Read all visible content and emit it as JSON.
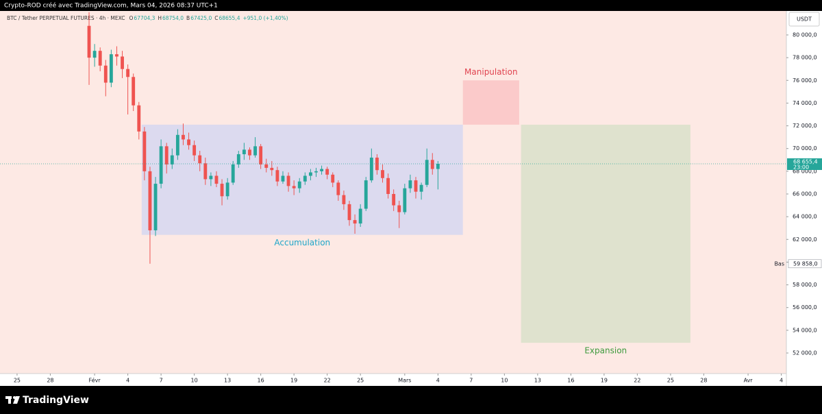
{
  "header": {
    "author_line": "Crypto-ROD créé avec TradingView.com, Mars 04, 2026 08:37 UTC+1",
    "symbol": "BTC / Tether PERPETUAL FUTURES · 4h · MEXC",
    "ohlc": [
      {
        "label": "O",
        "value": "67704,3"
      },
      {
        "label": "H",
        "value": "68754,0"
      },
      {
        "label": "B",
        "value": "67425,0"
      },
      {
        "label": "C",
        "value": "68655,4"
      }
    ],
    "change": "+951,0 (+1,40%)"
  },
  "footer": {
    "brand": "TradingView"
  },
  "chart_data": {
    "type": "candlestick",
    "currency": "USDT",
    "up_color": "#26a69a",
    "down_color": "#ef5350",
    "background": "#fde9e4",
    "ylim": [
      50190,
      82110
    ],
    "yticks": [
      {
        "value": 52000,
        "label": "52 000,0"
      },
      {
        "value": 54000,
        "label": "54 000,0"
      },
      {
        "value": 56000,
        "label": "56 000,0"
      },
      {
        "value": 58000,
        "label": "58 000,0"
      },
      {
        "value": 60000,
        "label": "60 000,0"
      },
      {
        "value": 62000,
        "label": "62 000,0"
      },
      {
        "value": 64000,
        "label": "64 000,0"
      },
      {
        "value": 66000,
        "label": "66 000,0"
      },
      {
        "value": 68000,
        "label": "68 000,0"
      },
      {
        "value": 70000,
        "label": "70 000,0"
      },
      {
        "value": 72000,
        "label": "72 000,0"
      },
      {
        "value": 74000,
        "label": "74 000,0"
      },
      {
        "value": 76000,
        "label": "76 000,0"
      },
      {
        "value": 78000,
        "label": "78 000,0"
      },
      {
        "value": 80000,
        "label": "80 000,0"
      }
    ],
    "xlim": [
      "2026-01-23T11:00",
      "2026-04-04T11:00"
    ],
    "xticks": [
      {
        "value": "2026-01-25T00:00",
        "label": "25"
      },
      {
        "value": "2026-01-28T00:00",
        "label": "28"
      },
      {
        "value": "2026-02-01T00:00",
        "label": "Févr"
      },
      {
        "value": "2026-02-04T00:00",
        "label": "4"
      },
      {
        "value": "2026-02-07T00:00",
        "label": "7"
      },
      {
        "value": "2026-02-10T00:00",
        "label": "10"
      },
      {
        "value": "2026-02-13T00:00",
        "label": "13"
      },
      {
        "value": "2026-02-16T00:00",
        "label": "16"
      },
      {
        "value": "2026-02-19T00:00",
        "label": "19"
      },
      {
        "value": "2026-02-22T00:00",
        "label": "22"
      },
      {
        "value": "2026-02-25T00:00",
        "label": "25"
      },
      {
        "value": "2026-03-01T00:00",
        "label": "Mars"
      },
      {
        "value": "2026-03-04T00:00",
        "label": "4"
      },
      {
        "value": "2026-03-07T00:00",
        "label": "7"
      },
      {
        "value": "2026-03-10T00:00",
        "label": "10"
      },
      {
        "value": "2026-03-13T00:00",
        "label": "13"
      },
      {
        "value": "2026-03-16T00:00",
        "label": "16"
      },
      {
        "value": "2026-03-19T00:00",
        "label": "19"
      },
      {
        "value": "2026-03-22T00:00",
        "label": "22"
      },
      {
        "value": "2026-03-25T00:00",
        "label": "25"
      },
      {
        "value": "2026-03-28T00:00",
        "label": "28"
      },
      {
        "value": "2026-04-01T00:00",
        "label": "Avr"
      },
      {
        "value": "2026-04-04T00:00",
        "label": "4"
      }
    ],
    "x": [
      "2026-01-31T12:00",
      "2026-02-01T00:00",
      "2026-02-01T12:00",
      "2026-02-02T00:00",
      "2026-02-02T12:00",
      "2026-02-03T00:00",
      "2026-02-03T12:00",
      "2026-02-04T00:00",
      "2026-02-04T12:00",
      "2026-02-05T00:00",
      "2026-02-05T12:00",
      "2026-02-06T00:00",
      "2026-02-06T12:00",
      "2026-02-07T00:00",
      "2026-02-07T12:00",
      "2026-02-08T00:00",
      "2026-02-08T12:00",
      "2026-02-09T00:00",
      "2026-02-09T12:00",
      "2026-02-10T00:00",
      "2026-02-10T12:00",
      "2026-02-11T00:00",
      "2026-02-11T12:00",
      "2026-02-12T00:00",
      "2026-02-12T12:00",
      "2026-02-13T00:00",
      "2026-02-13T12:00",
      "2026-02-14T00:00",
      "2026-02-14T12:00",
      "2026-02-15T00:00",
      "2026-02-15T12:00",
      "2026-02-16T00:00",
      "2026-02-16T12:00",
      "2026-02-17T00:00",
      "2026-02-17T12:00",
      "2026-02-18T00:00",
      "2026-02-18T12:00",
      "2026-02-19T00:00",
      "2026-02-19T12:00",
      "2026-02-20T00:00",
      "2026-02-20T12:00",
      "2026-02-21T00:00",
      "2026-02-21T12:00",
      "2026-02-22T00:00",
      "2026-02-22T12:00",
      "2026-02-23T00:00",
      "2026-02-23T12:00",
      "2026-02-24T00:00",
      "2026-02-24T12:00",
      "2026-02-25T00:00",
      "2026-02-25T12:00",
      "2026-02-26T00:00",
      "2026-02-26T12:00",
      "2026-02-27T00:00",
      "2026-02-27T12:00",
      "2026-02-28T00:00",
      "2026-02-28T12:00",
      "2026-03-01T00:00",
      "2026-03-01T12:00",
      "2026-03-02T00:00",
      "2026-03-02T12:00",
      "2026-03-03T00:00",
      "2026-03-03T12:00",
      "2026-03-04T00:00"
    ],
    "open": [
      80800,
      78000,
      78600,
      77300,
      75800,
      78300,
      78100,
      77000,
      76300,
      73800,
      71500,
      68000,
      62800,
      66900,
      70200,
      68600,
      69400,
      71200,
      70800,
      70300,
      69400,
      68700,
      67300,
      67600,
      66900,
      65800,
      67000,
      68600,
      69500,
      69900,
      69400,
      70200,
      68600,
      68300,
      68100,
      67100,
      67600,
      66700,
      66500,
      67100,
      67600,
      67900,
      68000,
      68200,
      67700,
      67000,
      65900,
      65100,
      63700,
      63400,
      64700,
      67200,
      69200,
      68100,
      67400,
      66000,
      65000,
      64400,
      66500,
      67200,
      66200,
      66800,
      69000,
      68200
    ],
    "high": [
      82000,
      79200,
      78900,
      77800,
      78700,
      79000,
      78600,
      77400,
      76600,
      74100,
      71900,
      68400,
      67500,
      70800,
      70500,
      70000,
      71700,
      72200,
      71400,
      70700,
      69800,
      69200,
      67900,
      68000,
      67300,
      67400,
      68900,
      69800,
      70500,
      70100,
      71000,
      70400,
      69100,
      68900,
      68400,
      68000,
      67900,
      67200,
      67400,
      67900,
      68200,
      68300,
      68500,
      68400,
      67900,
      67200,
      66300,
      65400,
      64200,
      65100,
      67500,
      70000,
      69500,
      68600,
      67800,
      66400,
      65400,
      66900,
      67700,
      67500,
      67000,
      70000,
      69600,
      68900
    ],
    "low": [
      75600,
      77200,
      76800,
      74600,
      75400,
      77300,
      76200,
      73000,
      73300,
      70800,
      67200,
      59858,
      62300,
      66500,
      67800,
      68200,
      69000,
      70300,
      69900,
      68900,
      68000,
      66800,
      66700,
      66600,
      65000,
      65500,
      66800,
      68300,
      69000,
      69000,
      69200,
      68200,
      67900,
      67600,
      66700,
      66900,
      66200,
      65900,
      66100,
      66800,
      67200,
      67500,
      67700,
      67300,
      66600,
      65400,
      64600,
      63200,
      62500,
      63100,
      64500,
      67000,
      67700,
      67000,
      65600,
      64500,
      63000,
      64200,
      66100,
      65600,
      65500,
      66600,
      67700,
      66400
    ],
    "close": [
      78000,
      78600,
      77300,
      75800,
      78300,
      78100,
      77000,
      76300,
      73800,
      71500,
      68000,
      62800,
      66900,
      70200,
      68600,
      69400,
      71200,
      70800,
      70300,
      69400,
      68700,
      67300,
      67600,
      66900,
      65800,
      67000,
      68600,
      69500,
      69900,
      69400,
      70200,
      68600,
      68300,
      68100,
      67100,
      67600,
      66700,
      66500,
      67100,
      67600,
      67900,
      68000,
      68200,
      67700,
      67000,
      65900,
      65100,
      63700,
      63400,
      64700,
      67200,
      69200,
      68100,
      67400,
      66000,
      65000,
      64400,
      66500,
      67200,
      66200,
      66800,
      69000,
      68200,
      68655.4
    ],
    "last_price": {
      "value": 68655.4,
      "label": "68 655,4",
      "countdown": "23:00",
      "color": "#26a69a"
    },
    "low_marker": {
      "label": "Bas",
      "value": 59858,
      "value_label": "59 858,0"
    },
    "zones": [
      {
        "label": "Accumulation",
        "color": "#d8d8ef",
        "label_color": "#1ea6c9",
        "label_pos": "below",
        "x": [
          "2026-02-05T06:00",
          "2026-03-06T06:00"
        ],
        "y": [
          72100,
          62400
        ]
      },
      {
        "label": "Manipulation",
        "color": "#fbc7c7",
        "label_color": "#e0434f",
        "label_pos": "above",
        "x": [
          "2026-03-06T06:00",
          "2026-03-11T08:00"
        ],
        "y": [
          76000,
          72100
        ]
      },
      {
        "label": "Expansion",
        "color": "#dbe1cb",
        "label_color": "#3d9a3d",
        "label_pos": "below",
        "x": [
          "2026-03-11T12:00",
          "2026-03-26T19:00"
        ],
        "y": [
          72100,
          52900
        ]
      }
    ]
  }
}
